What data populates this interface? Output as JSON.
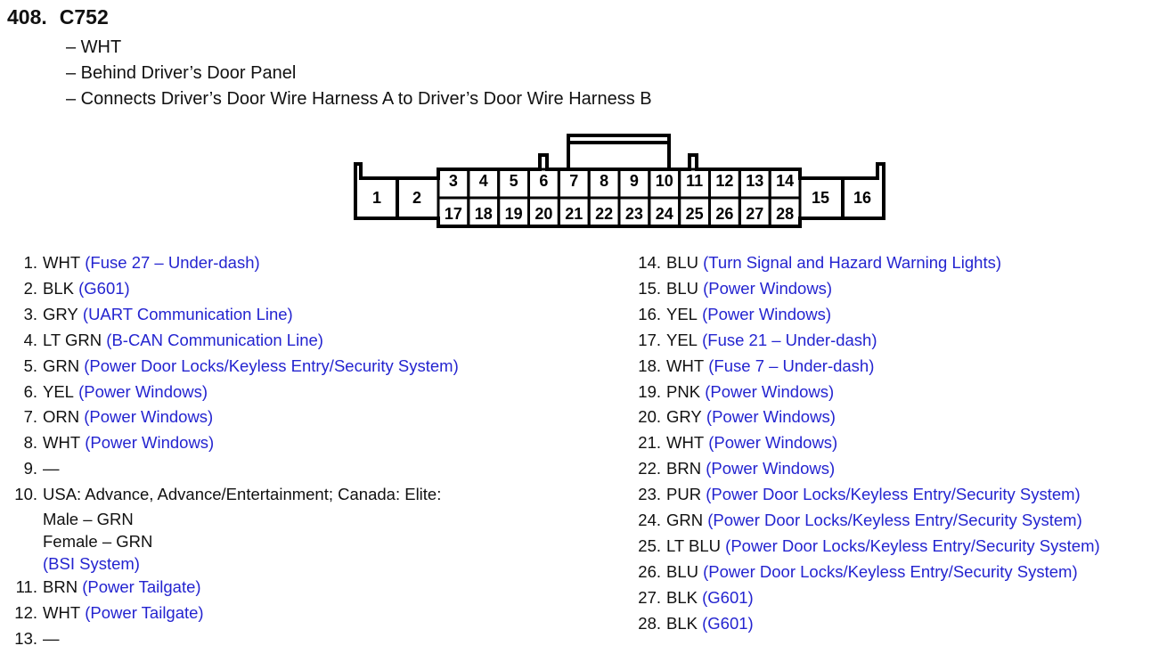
{
  "header": {
    "number": "408.",
    "connector": "C752",
    "details": [
      "– WHT",
      "– Behind Driver’s Door Panel",
      "– Connects Driver’s Door Wire Harness A to Driver’s Door Wire Harness B"
    ]
  },
  "connector_terminals": {
    "top_row": [
      "3",
      "4",
      "5",
      "6",
      "7",
      "8",
      "9",
      "10",
      "11",
      "12",
      "13",
      "14"
    ],
    "bottom_row": [
      "17",
      "18",
      "19",
      "20",
      "21",
      "22",
      "23",
      "24",
      "25",
      "26",
      "27",
      "28"
    ],
    "left": [
      "1",
      "2"
    ],
    "right": [
      "15",
      "16"
    ]
  },
  "left_list": [
    {
      "n": "1.",
      "wire": "WHT",
      "circuit": "(Fuse 27 – Under-dash)"
    },
    {
      "n": "2.",
      "wire": "BLK",
      "circuit": "(G601)"
    },
    {
      "n": "3.",
      "wire": "GRY",
      "circuit": "(UART Communication Line)"
    },
    {
      "n": "4.",
      "wire": "LT GRN",
      "circuit": "(B-CAN Communication Line)"
    },
    {
      "n": "5.",
      "wire": "GRN",
      "circuit": "(Power Door Locks/Keyless Entry/Security System)"
    },
    {
      "n": "6.",
      "wire": "YEL",
      "circuit": "(Power Windows)"
    },
    {
      "n": "7.",
      "wire": "ORN",
      "circuit": "(Power Windows)"
    },
    {
      "n": "8.",
      "wire": "WHT",
      "circuit": "(Power Windows)"
    },
    {
      "n": "9.",
      "wire": "—",
      "circuit": ""
    },
    {
      "n": "10.",
      "wire": "USA: Advance, Advance/Entertainment; Canada: Elite:",
      "circuit": ""
    }
  ],
  "item10_sub": {
    "male": "Male – GRN",
    "female": "Female – GRN",
    "circuit": "(BSI System)"
  },
  "left_list_after": [
    {
      "n": "11.",
      "wire": "BRN",
      "circuit": "(Power Tailgate)"
    },
    {
      "n": "12.",
      "wire": "WHT",
      "circuit": "(Power Tailgate)"
    },
    {
      "n": "13.",
      "wire": "—",
      "circuit": ""
    }
  ],
  "right_list": [
    {
      "n": "14.",
      "wire": "BLU",
      "circuit": "(Turn Signal and Hazard Warning Lights)"
    },
    {
      "n": "15.",
      "wire": "BLU",
      "circuit": "(Power Windows)"
    },
    {
      "n": "16.",
      "wire": "YEL",
      "circuit": "(Power Windows)"
    },
    {
      "n": "17.",
      "wire": "YEL",
      "circuit": "(Fuse 21 – Under-dash)"
    },
    {
      "n": "18.",
      "wire": "WHT",
      "circuit": "(Fuse 7 – Under-dash)"
    },
    {
      "n": "19.",
      "wire": "PNK",
      "circuit": "(Power Windows)"
    },
    {
      "n": "20.",
      "wire": "GRY",
      "circuit": "(Power Windows)"
    },
    {
      "n": "21.",
      "wire": "WHT",
      "circuit": "(Power Windows)"
    },
    {
      "n": "22.",
      "wire": "BRN",
      "circuit": "(Power Windows)"
    },
    {
      "n": "23.",
      "wire": "PUR",
      "circuit": "(Power Door Locks/Keyless Entry/Security System)"
    },
    {
      "n": "24.",
      "wire": "GRN",
      "circuit": "(Power Door Locks/Keyless Entry/Security System)"
    },
    {
      "n": "25.",
      "wire": "LT BLU",
      "circuit": "(Power Door Locks/Keyless Entry/Security System)"
    },
    {
      "n": "26.",
      "wire": "BLU",
      "circuit": "(Power Door Locks/Keyless Entry/Security System)"
    },
    {
      "n": "27.",
      "wire": "BLK",
      "circuit": "(G601)"
    },
    {
      "n": "28.",
      "wire": "BLK",
      "circuit": "(G601)"
    }
  ],
  "colors": {
    "circuit_text": "#2424d0",
    "text": "#111111"
  }
}
